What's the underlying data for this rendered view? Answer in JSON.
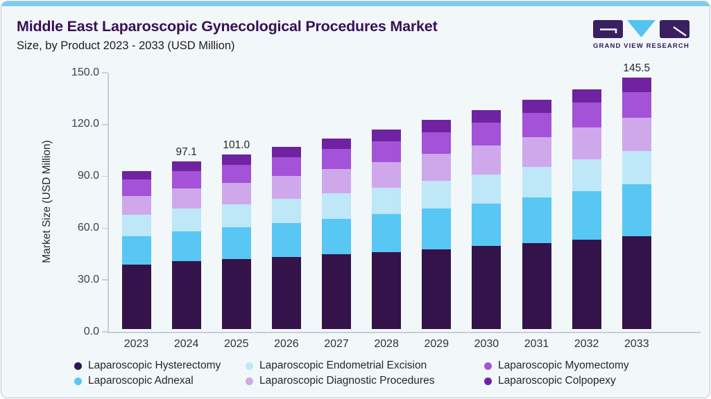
{
  "header": {
    "title": "Middle East Laparoscopic Gynecological Procedures Market",
    "subtitle": "Size, by Product 2023 - 2033 (USD Million)"
  },
  "logo": {
    "text": "GRAND VIEW RESEARCH",
    "dark_color": "#3a2060",
    "cyan_color": "#54c4ee"
  },
  "colors": {
    "card_bg": "#f2f7fa",
    "accent_strip": "#7ecdf0",
    "card_border": "#bdc6ce",
    "title_text": "#3a0f55",
    "axis_line": "#c7ced6",
    "axis_text": "#3c4048",
    "value_text": "#26262b"
  },
  "chart_data": {
    "type": "bar",
    "stacked": true,
    "title": "Middle East Laparoscopic Gynecological Procedures Market Size, by Product 2023 - 2033 (USD Million)",
    "xlabel": "",
    "ylabel": "Market Size (USD Million)",
    "ylim": [
      0,
      150
    ],
    "ytick_values": [
      0,
      30,
      60,
      90,
      120,
      150
    ],
    "ytick_labels": [
      "0.0",
      "30.0",
      "60.0",
      "90.0",
      "120.0",
      "150.0"
    ],
    "grid": false,
    "legend_position": "bottom",
    "categories": [
      "2023",
      "2024",
      "2025",
      "2026",
      "2027",
      "2028",
      "2029",
      "2030",
      "2031",
      "2032",
      "2033"
    ],
    "series": [
      {
        "name": "Laparoscopic Hysterectomy",
        "color": "#331349",
        "values": [
          37.5,
          39.3,
          40.5,
          41.9,
          43.2,
          44.7,
          46.3,
          48.0,
          49.8,
          51.7,
          53.8
        ]
      },
      {
        "name": "Laparoscopic Adnexal",
        "color": "#58c7f3",
        "values": [
          16.3,
          17.4,
          18.3,
          19.4,
          20.6,
          21.9,
          23.3,
          24.8,
          26.4,
          28.1,
          30.0
        ]
      },
      {
        "name": "Laparoscopic Endometrial Excision",
        "color": "#bee7f8",
        "values": [
          12.4,
          13.0,
          13.5,
          14.1,
          14.7,
          15.4,
          16.1,
          16.8,
          17.6,
          18.4,
          19.3
        ]
      },
      {
        "name": "Laparoscopic Diagnostic Procedures",
        "color": "#cfa8ec",
        "values": [
          11.0,
          11.7,
          12.4,
          13.2,
          14.0,
          14.8,
          15.7,
          16.6,
          17.5,
          18.4,
          19.1
        ]
      },
      {
        "name": "Laparoscopic Myomectomy",
        "color": "#a452d8",
        "values": [
          9.3,
          9.9,
          10.4,
          11.0,
          11.6,
          12.1,
          12.7,
          13.3,
          13.9,
          14.5,
          15.0
        ]
      },
      {
        "name": "Laparoscopic Colpopexy",
        "color": "#6f23a0",
        "values": [
          4.9,
          5.8,
          5.9,
          6.1,
          6.4,
          6.6,
          6.9,
          7.2,
          7.5,
          7.8,
          8.3
        ]
      }
    ],
    "bar_labels": [
      "",
      "97.1",
      "101.0",
      "",
      "",
      "",
      "",
      "",
      "",
      "",
      "145.5"
    ],
    "legend_order": [
      "Laparoscopic Hysterectomy",
      "Laparoscopic Endometrial Excision",
      "Laparoscopic Myomectomy",
      "Laparoscopic Adnexal",
      "Laparoscopic Diagnostic Procedures",
      "Laparoscopic Colpopexy"
    ]
  }
}
